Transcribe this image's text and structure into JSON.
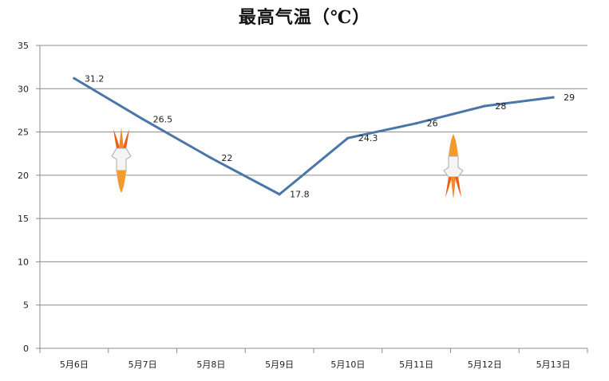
{
  "chart_data": {
    "type": "line",
    "title": "最高气温（℃）",
    "categories": [
      "5月6日",
      "5月7日",
      "5月8日",
      "5月9日",
      "5月10日",
      "5月11日",
      "5月12日",
      "5月13日"
    ],
    "series": [
      {
        "values": [
          31.2,
          26.5,
          22,
          17.8,
          24.3,
          26,
          28,
          29
        ],
        "color": "#4a76a8"
      }
    ],
    "data_labels": [
      "31.2",
      "26.5",
      "22",
      "17.8",
      "24.3",
      "26",
      "28",
      "29"
    ],
    "ylim": [
      0,
      35
    ],
    "yticks": [
      0,
      5,
      10,
      15,
      20,
      25,
      30,
      35
    ],
    "grid": true,
    "legend": "none"
  },
  "decorations": {
    "left_rocket_icon": "rocket-down-icon",
    "right_rocket_icon": "rocket-up-icon"
  }
}
